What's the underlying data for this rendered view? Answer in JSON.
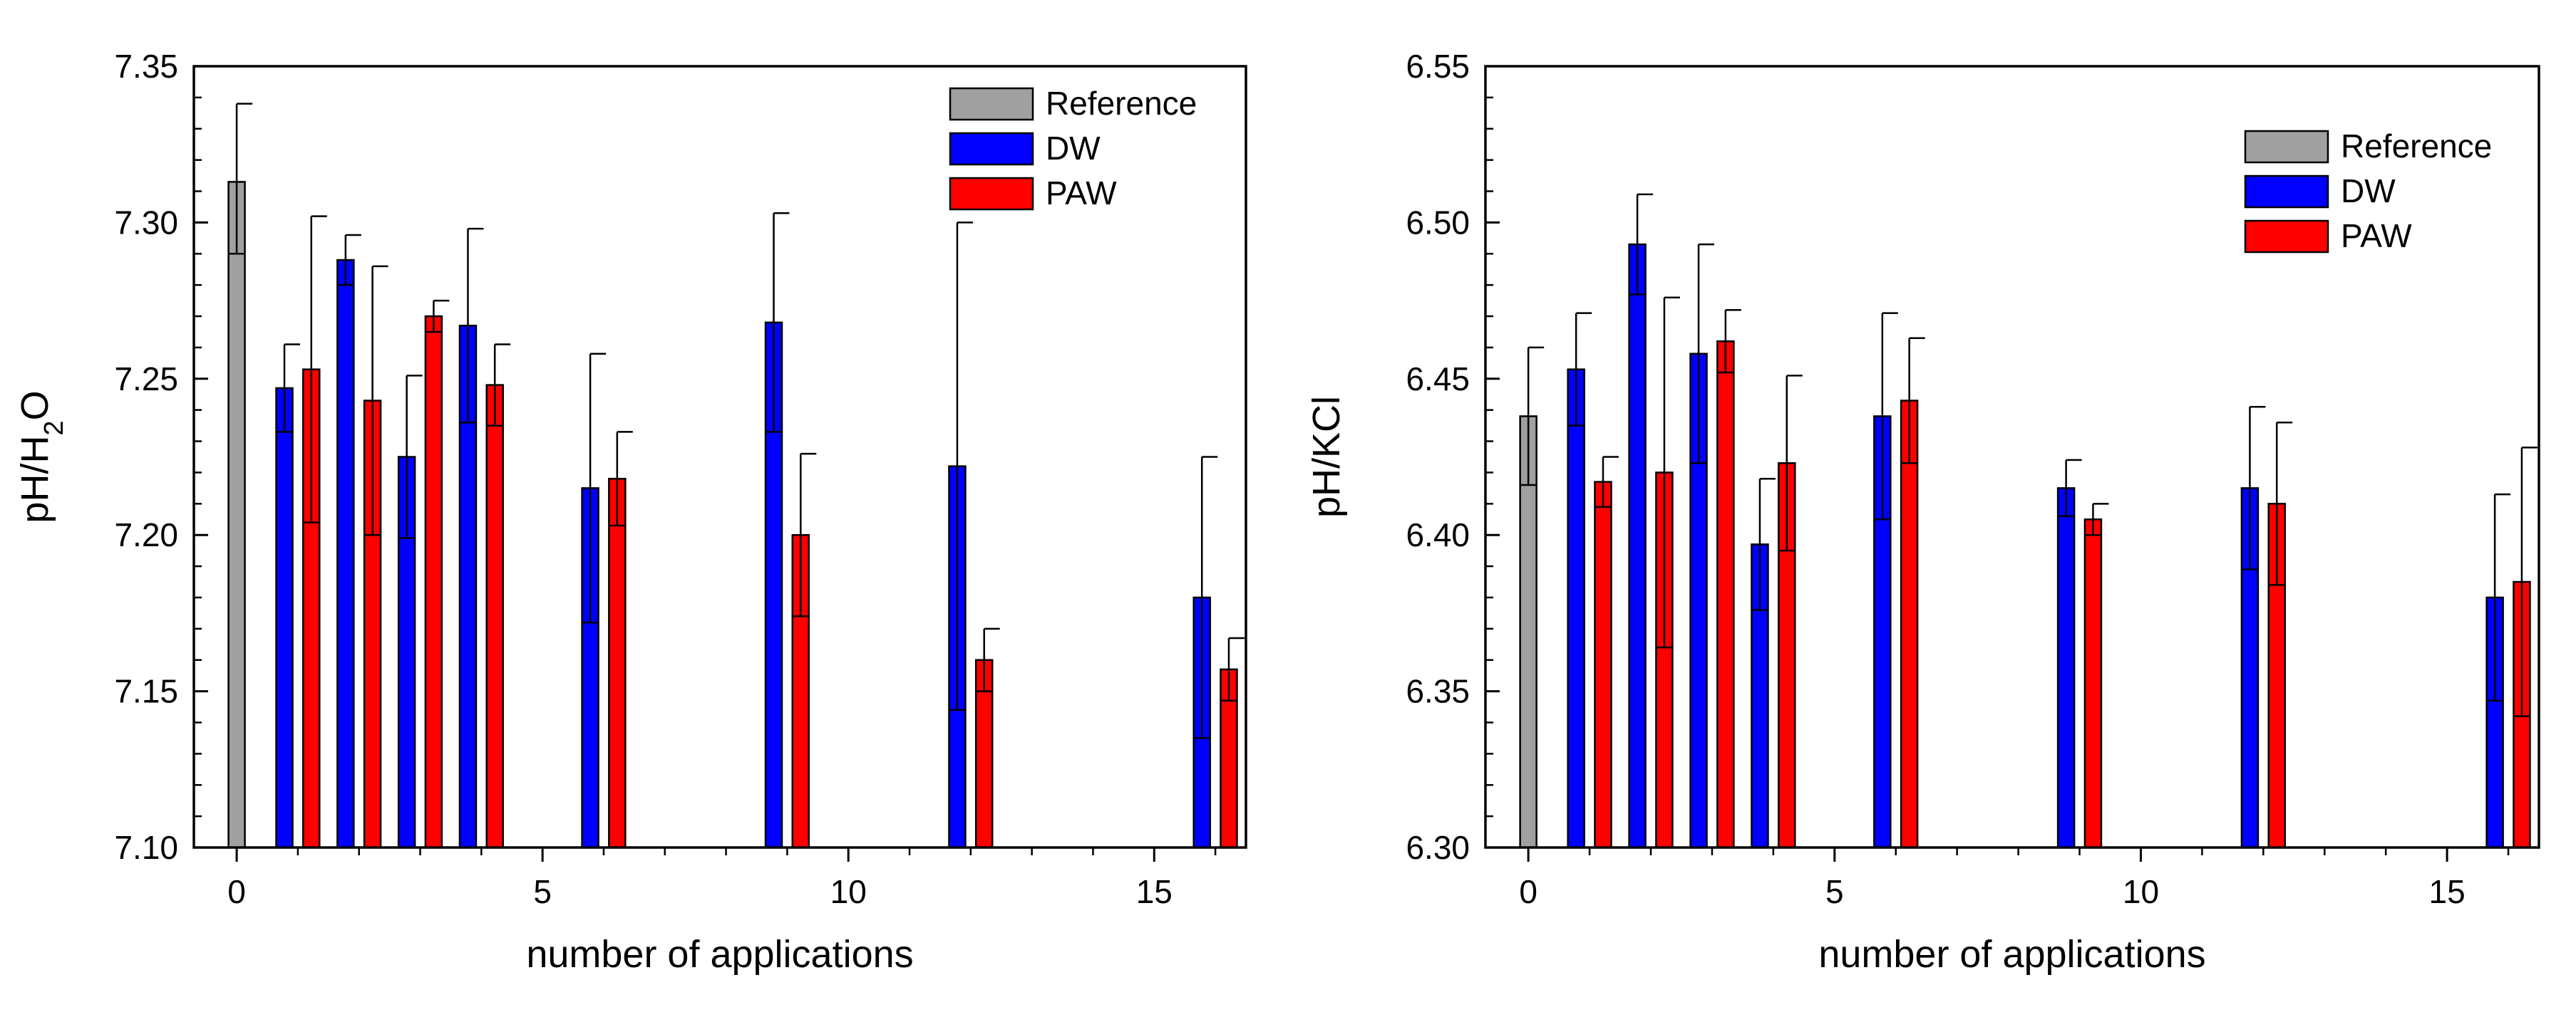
{
  "colors": {
    "reference": "#a0a0a0",
    "dw": "#0000ff",
    "paw": "#ff0000",
    "axis": "#000000"
  },
  "chart_data": [
    {
      "type": "bar",
      "xlabel": "number of applications",
      "ylabel": "pH/H2O",
      "ylabel_parts": {
        "main": "pH/H",
        "sub": "2",
        "tail": "O"
      },
      "xlim": [
        -0.7,
        16.5
      ],
      "ylim": [
        7.1,
        7.35
      ],
      "x_ticks": [
        0,
        5,
        10,
        15
      ],
      "x_tick_labels": [
        "0",
        "5",
        "10",
        "15"
      ],
      "y_ticks": [
        7.1,
        7.15,
        7.2,
        7.25,
        7.3,
        7.35
      ],
      "y_tick_labels": [
        "7.10",
        "7.15",
        "7.20",
        "7.25",
        "7.30",
        "7.35"
      ],
      "legend_position": "top-right",
      "series": [
        {
          "name": "Reference",
          "color": "#a0a0a0",
          "x": [
            0
          ],
          "values": [
            7.313
          ],
          "upper": [
            7.338
          ],
          "lower": [
            7.29
          ]
        },
        {
          "name": "DW",
          "color": "#0000ff",
          "x": [
            1,
            2,
            3,
            4,
            6,
            9,
            12,
            16
          ],
          "values": [
            7.247,
            7.288,
            7.225,
            7.267,
            7.215,
            7.268,
            7.222,
            7.18
          ],
          "upper": [
            7.261,
            7.296,
            7.251,
            7.298,
            7.258,
            7.303,
            7.3,
            7.225
          ],
          "lower": [
            7.233,
            7.28,
            7.199,
            7.236,
            7.172,
            7.233,
            7.144,
            7.135
          ]
        },
        {
          "name": "PAW",
          "color": "#ff0000",
          "x": [
            1,
            2,
            3,
            4,
            6,
            9,
            12,
            16
          ],
          "values": [
            7.253,
            7.243,
            7.27,
            7.248,
            7.218,
            7.2,
            7.16,
            7.157
          ],
          "upper": [
            7.302,
            7.286,
            7.275,
            7.261,
            7.233,
            7.226,
            7.17,
            7.167
          ],
          "lower": [
            7.204,
            7.2,
            7.265,
            7.235,
            7.203,
            7.174,
            7.15,
            7.147
          ]
        }
      ]
    },
    {
      "type": "bar",
      "xlabel": "number of applications",
      "ylabel": "pH/KCl",
      "ylabel_parts": {
        "main": "pH/KCl",
        "sub": "",
        "tail": ""
      },
      "xlim": [
        -0.7,
        16.5
      ],
      "ylim": [
        6.3,
        6.55
      ],
      "x_ticks": [
        0,
        5,
        10,
        15
      ],
      "x_tick_labels": [
        "0",
        "5",
        "10",
        "15"
      ],
      "y_ticks": [
        6.3,
        6.35,
        6.4,
        6.45,
        6.5,
        6.55
      ],
      "y_tick_labels": [
        "6.30",
        "6.35",
        "6.40",
        "6.45",
        "6.50",
        "6.55"
      ],
      "legend_position": "top-right",
      "series": [
        {
          "name": "Reference",
          "color": "#a0a0a0",
          "x": [
            0
          ],
          "values": [
            6.438
          ],
          "upper": [
            6.46
          ],
          "lower": [
            6.416
          ]
        },
        {
          "name": "DW",
          "color": "#0000ff",
          "x": [
            1,
            2,
            3,
            4,
            6,
            9,
            12,
            16
          ],
          "values": [
            6.453,
            6.493,
            6.458,
            6.397,
            6.438,
            6.415,
            6.415,
            6.38
          ],
          "upper": [
            6.471,
            6.509,
            6.493,
            6.418,
            6.471,
            6.424,
            6.441,
            6.413
          ],
          "lower": [
            6.435,
            6.477,
            6.423,
            6.376,
            6.405,
            6.406,
            6.389,
            6.347
          ]
        },
        {
          "name": "PAW",
          "color": "#ff0000",
          "x": [
            1,
            2,
            3,
            4,
            6,
            9,
            12,
            16
          ],
          "values": [
            6.417,
            6.42,
            6.462,
            6.423,
            6.443,
            6.405,
            6.41,
            6.385
          ],
          "upper": [
            6.425,
            6.476,
            6.472,
            6.451,
            6.463,
            6.41,
            6.436,
            6.428
          ],
          "lower": [
            6.409,
            6.364,
            6.452,
            6.395,
            6.423,
            6.4,
            6.384,
            6.342
          ]
        }
      ]
    }
  ]
}
